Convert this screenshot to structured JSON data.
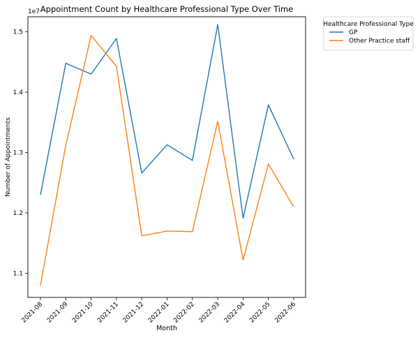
{
  "chart_data": {
    "type": "line",
    "title": "Appointment Count by Healthcare Professional Type Over Time",
    "xlabel": "Month",
    "ylabel": "Number of Appointments",
    "y_offset_label": "1e7",
    "categories": [
      "2021-08",
      "2021-09",
      "2021-10",
      "2021-11",
      "2021-12",
      "2022-01",
      "2022-02",
      "2022-03",
      "2022-04",
      "2022-05",
      "2022-06"
    ],
    "ylim": [
      10600000,
      15250000
    ],
    "yticks": [
      11000000,
      12000000,
      13000000,
      14000000,
      15000000
    ],
    "ytick_labels": [
      "1.1",
      "1.2",
      "1.3",
      "1.4",
      "1.5"
    ],
    "legend_title": "Healthcare Professional Type",
    "legend_position": "outside-top-right",
    "grid": false,
    "series": [
      {
        "name": "GP",
        "color": "#1f77b4",
        "values": [
          12300000,
          14480000,
          14300000,
          14890000,
          12660000,
          13130000,
          12870000,
          15120000,
          11910000,
          13790000,
          12890000
        ]
      },
      {
        "name": "Other Practice staff",
        "color": "#ff7f0e",
        "values": [
          10800000,
          13120000,
          14940000,
          14430000,
          11620000,
          11700000,
          11690000,
          13520000,
          11220000,
          12810000,
          12100000
        ]
      }
    ]
  }
}
